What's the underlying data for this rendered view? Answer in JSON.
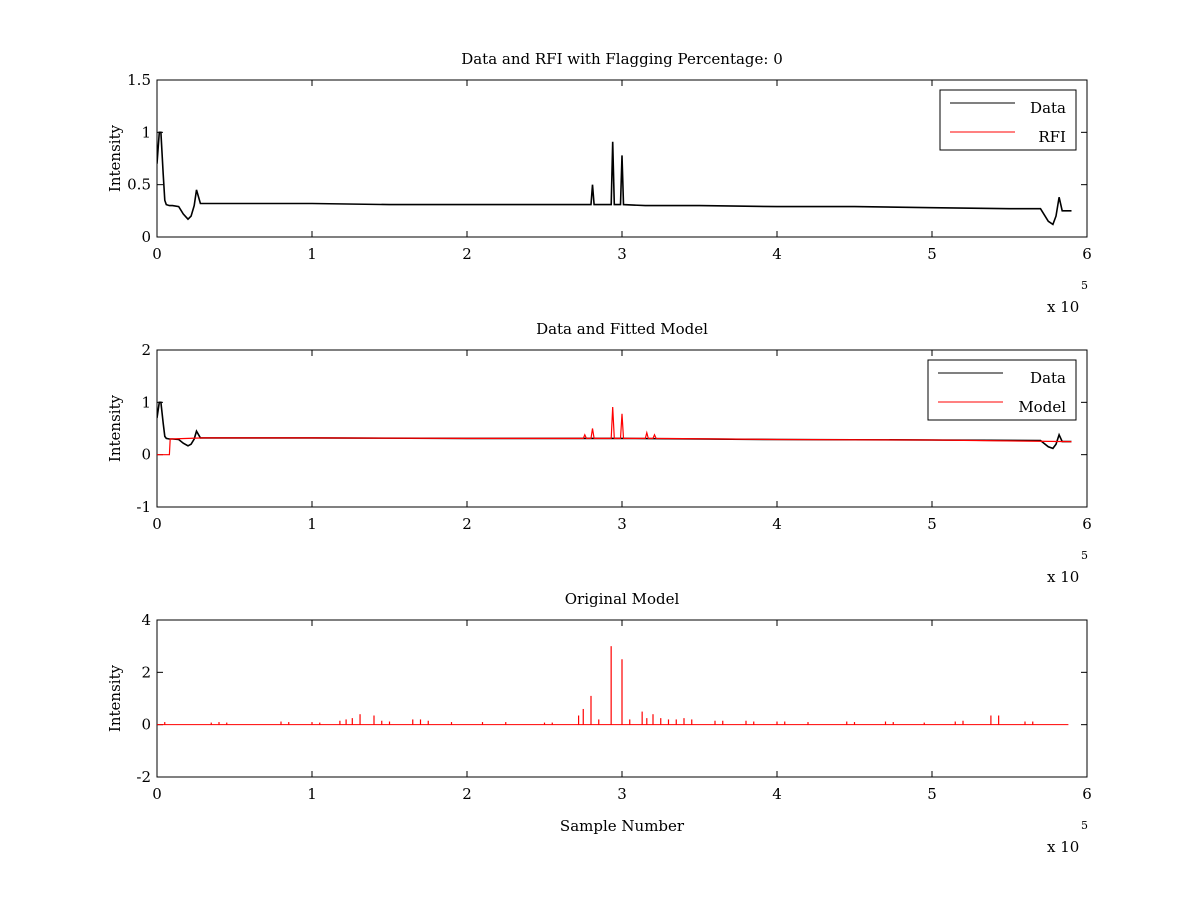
{
  "chart_data": [
    {
      "type": "line",
      "title": "Data and RFI with Flagging Percentage: 0",
      "xlabel": "",
      "ylabel": "Intensity",
      "xlim": [
        0,
        600000
      ],
      "ylim": [
        0,
        1.5
      ],
      "xticks": [
        0,
        1,
        2,
        3,
        4,
        5,
        6
      ],
      "yticks": [
        0,
        0.5,
        1,
        1.5
      ],
      "xtick_labels": [
        "0",
        "1",
        "2",
        "3",
        "4",
        "5",
        "6"
      ],
      "ytick_labels": [
        "0",
        "0.5",
        "1",
        "1.5"
      ],
      "x_exponent": {
        "base": "x 10",
        "power": "5"
      },
      "legend": {
        "position": "top-right",
        "entries": [
          "Data",
          "RFI"
        ]
      },
      "colors": {
        "Data": "#000000",
        "RFI": "#ff0000"
      },
      "series": [
        {
          "name": "Data",
          "color": "#000000",
          "x": [
            0,
            1500,
            2500,
            4000,
            5000,
            6000,
            8000,
            10000,
            14000,
            17000,
            20000,
            22000,
            24000,
            25500,
            28000,
            32000,
            50000,
            100000,
            150000,
            200000,
            250000,
            275000,
            280000,
            281000,
            282000,
            290000,
            293000,
            294000,
            295000,
            299000,
            300000,
            301000,
            315000,
            330000,
            350000,
            400000,
            450000,
            500000,
            550000,
            570000,
            575000,
            578000,
            580000,
            582000,
            584000,
            586000,
            590000
          ],
          "y": [
            0.7,
            1.0,
            1.0,
            0.6,
            0.35,
            0.31,
            0.3,
            0.3,
            0.29,
            0.22,
            0.17,
            0.2,
            0.3,
            0.45,
            0.32,
            0.32,
            0.32,
            0.32,
            0.31,
            0.31,
            0.31,
            0.31,
            0.31,
            0.5,
            0.31,
            0.31,
            0.31,
            0.91,
            0.31,
            0.31,
            0.78,
            0.31,
            0.3,
            0.3,
            0.3,
            0.29,
            0.29,
            0.28,
            0.27,
            0.27,
            0.15,
            0.12,
            0.2,
            0.38,
            0.25,
            0.25,
            0.25
          ]
        },
        {
          "name": "RFI",
          "color": "#ff0000",
          "x": [],
          "y": []
        }
      ]
    },
    {
      "type": "line",
      "title": "Data and Fitted Model",
      "xlabel": "",
      "ylabel": "Intensity",
      "xlim": [
        0,
        600000
      ],
      "ylim": [
        -1,
        2
      ],
      "xticks": [
        0,
        1,
        2,
        3,
        4,
        5,
        6
      ],
      "yticks": [
        -1,
        0,
        1,
        2
      ],
      "xtick_labels": [
        "0",
        "1",
        "2",
        "3",
        "4",
        "5",
        "6"
      ],
      "ytick_labels": [
        "-1",
        "0",
        "1",
        "2"
      ],
      "x_exponent": {
        "base": "x 10",
        "power": "5"
      },
      "legend": {
        "position": "top-right",
        "entries": [
          "Data",
          "Model"
        ]
      },
      "colors": {
        "Data": "#000000",
        "Model": "#ff0000"
      },
      "series": [
        {
          "name": "Data",
          "color": "#000000",
          "x": [
            0,
            1500,
            2500,
            4000,
            5000,
            6000,
            8000,
            10000,
            14000,
            17000,
            20000,
            22000,
            24000,
            25500,
            28000,
            32000,
            100000,
            200000,
            300000,
            400000,
            500000,
            570000,
            575000,
            578000,
            580000,
            582000,
            584000,
            590000
          ],
          "y": [
            0.7,
            1.0,
            1.0,
            0.6,
            0.35,
            0.31,
            0.3,
            0.3,
            0.29,
            0.22,
            0.17,
            0.2,
            0.3,
            0.45,
            0.32,
            0.32,
            0.32,
            0.31,
            0.31,
            0.29,
            0.28,
            0.27,
            0.15,
            0.12,
            0.2,
            0.38,
            0.25,
            0.25
          ]
        },
        {
          "name": "Model",
          "color": "#ff0000",
          "x": [
            0,
            8000,
            8500,
            30000,
            100000,
            200000,
            275000,
            276000,
            277000,
            280000,
            281000,
            282000,
            293000,
            294000,
            295000,
            299000,
            300000,
            301000,
            315000,
            316000,
            317000,
            320000,
            321000,
            322000,
            400000,
            500000,
            590000
          ],
          "y": [
            0.0,
            0.0,
            0.3,
            0.32,
            0.32,
            0.31,
            0.31,
            0.38,
            0.31,
            0.31,
            0.5,
            0.31,
            0.31,
            0.91,
            0.31,
            0.31,
            0.78,
            0.31,
            0.31,
            0.42,
            0.31,
            0.31,
            0.38,
            0.31,
            0.29,
            0.28,
            0.25
          ]
        }
      ]
    },
    {
      "type": "line",
      "title": "Original Model",
      "xlabel": "Sample Number",
      "ylabel": "Intensity",
      "xlim": [
        0,
        600000
      ],
      "ylim": [
        -2,
        4
      ],
      "xticks": [
        0,
        1,
        2,
        3,
        4,
        5,
        6
      ],
      "yticks": [
        -2,
        0,
        2,
        4
      ],
      "xtick_labels": [
        "0",
        "1",
        "2",
        "3",
        "4",
        "5",
        "6"
      ],
      "ytick_labels": [
        "-2",
        "0",
        "2",
        "4"
      ],
      "x_exponent": {
        "base": "x 10",
        "power": "5"
      },
      "colors": {
        "Model": "#ff0000"
      },
      "series": [
        {
          "name": "",
          "color": "#ff0000",
          "spikes": [
            [
              5000,
              0.1
            ],
            [
              35000,
              0.08
            ],
            [
              40000,
              0.1
            ],
            [
              45000,
              0.08
            ],
            [
              80000,
              0.12
            ],
            [
              85000,
              0.1
            ],
            [
              100000,
              0.1
            ],
            [
              105000,
              0.08
            ],
            [
              118000,
              0.15
            ],
            [
              122000,
              0.2
            ],
            [
              126000,
              0.25
            ],
            [
              131000,
              0.4
            ],
            [
              140000,
              0.35
            ],
            [
              145000,
              0.15
            ],
            [
              150000,
              0.12
            ],
            [
              165000,
              0.2
            ],
            [
              170000,
              0.2
            ],
            [
              175000,
              0.15
            ],
            [
              190000,
              0.1
            ],
            [
              210000,
              0.1
            ],
            [
              225000,
              0.1
            ],
            [
              250000,
              0.08
            ],
            [
              255000,
              0.08
            ],
            [
              272000,
              0.35
            ],
            [
              275000,
              0.6
            ],
            [
              280000,
              1.1
            ],
            [
              285000,
              0.2
            ],
            [
              293000,
              3.0
            ],
            [
              300000,
              2.5
            ],
            [
              305000,
              0.2
            ],
            [
              313000,
              0.5
            ],
            [
              316000,
              0.25
            ],
            [
              320000,
              0.4
            ],
            [
              325000,
              0.25
            ],
            [
              330000,
              0.2
            ],
            [
              335000,
              0.2
            ],
            [
              340000,
              0.25
            ],
            [
              345000,
              0.2
            ],
            [
              360000,
              0.15
            ],
            [
              365000,
              0.15
            ],
            [
              380000,
              0.15
            ],
            [
              385000,
              0.12
            ],
            [
              400000,
              0.12
            ],
            [
              405000,
              0.12
            ],
            [
              420000,
              0.1
            ],
            [
              445000,
              0.12
            ],
            [
              450000,
              0.1
            ],
            [
              470000,
              0.12
            ],
            [
              475000,
              0.1
            ],
            [
              495000,
              0.08
            ],
            [
              515000,
              0.12
            ],
            [
              520000,
              0.15
            ],
            [
              538000,
              0.35
            ],
            [
              543000,
              0.35
            ],
            [
              560000,
              0.12
            ],
            [
              565000,
              0.12
            ]
          ],
          "x_end": 588000
        }
      ]
    }
  ]
}
